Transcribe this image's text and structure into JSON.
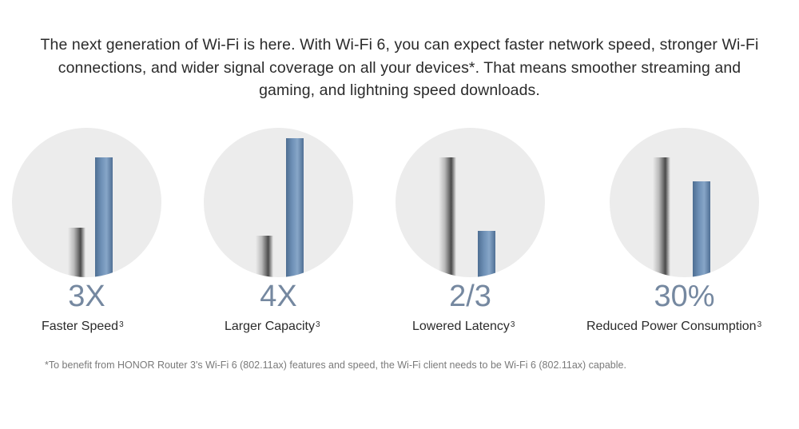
{
  "intro": {
    "text": "The next generation of Wi-Fi is here. With Wi-Fi 6, you can expect faster network speed, stronger Wi-Fi connections, and wider signal coverage on all your devices*. That means smoother streaming and gaming, and lightning speed downloads."
  },
  "features": [
    {
      "stat": "3X",
      "label": "Faster Speed",
      "note": "3",
      "gray_level": 0.33,
      "blue_level": 0.8
    },
    {
      "stat": "4X",
      "label": "Larger Capacity",
      "note": "3",
      "gray_level": 0.28,
      "blue_level": 0.93
    },
    {
      "stat": "2/3",
      "label": "Lowered Latency",
      "note": "3",
      "gray_level": 0.8,
      "blue_level": 0.31
    },
    {
      "stat": "30%",
      "label": "Reduced Power Consumption",
      "note": "3",
      "gray_level": 0.8,
      "blue_level": 0.64
    }
  ],
  "footnote": "*To benefit from HONOR Router 3's Wi-Fi 6 (802.11ax) features and speed, the Wi-Fi client needs to be Wi-Fi 6 (802.11ax) capable.",
  "colors": {
    "stat": "#7588a0",
    "blue_bar": "#6e90b6",
    "gray_bar": "#4a4a4a",
    "circle": "#ececec"
  }
}
